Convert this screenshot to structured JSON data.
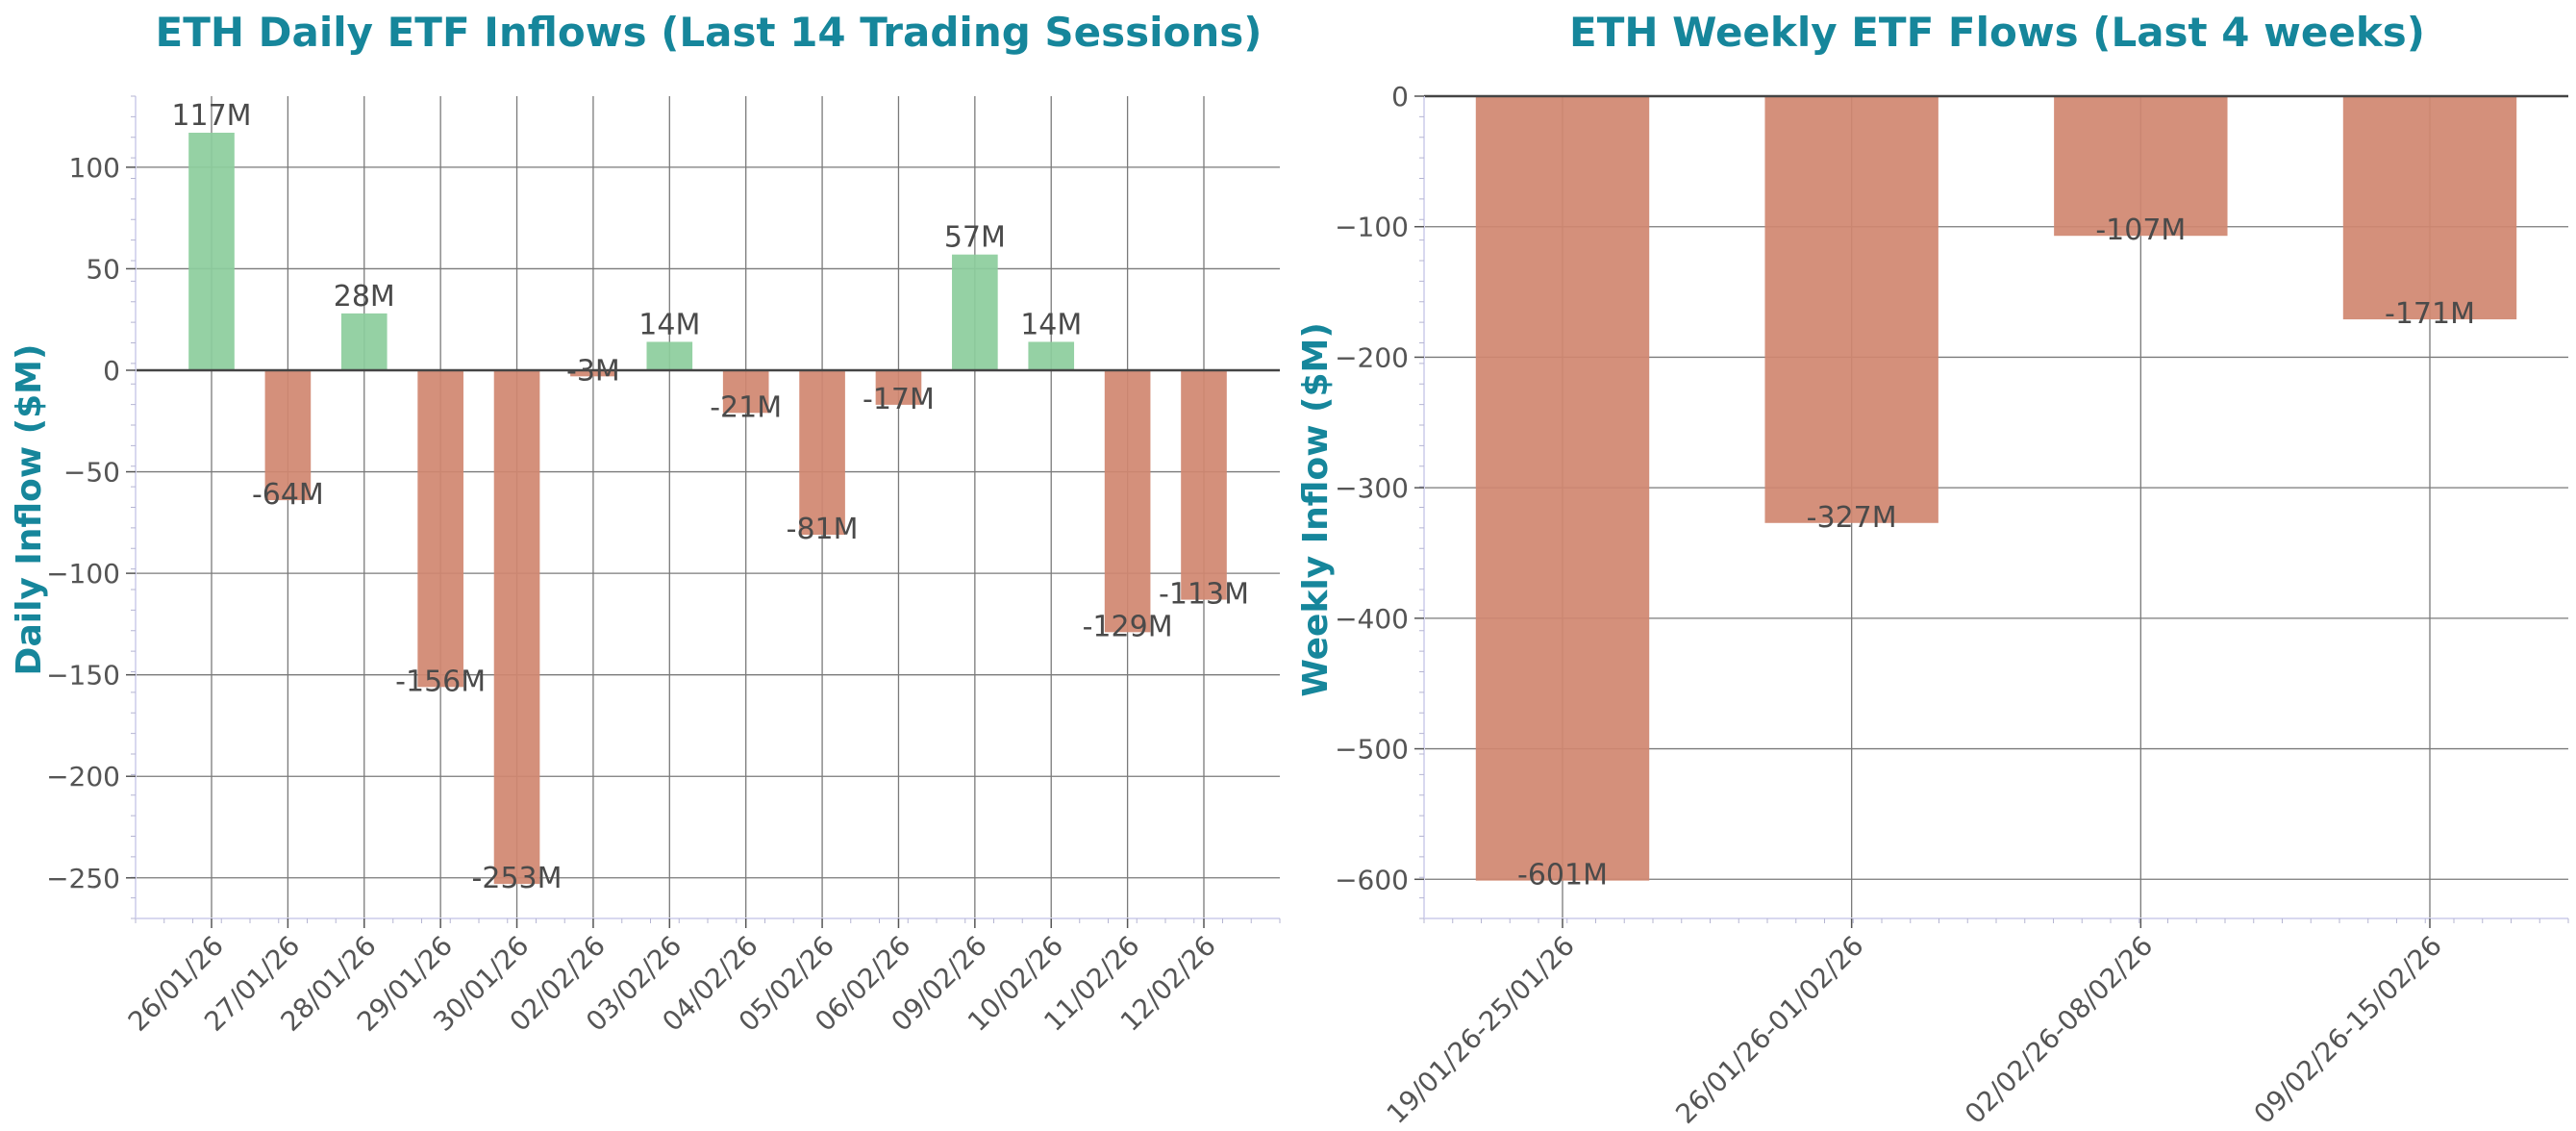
{
  "colors": {
    "positive": "#8ccd9c",
    "negative": "#d08770",
    "title": "#16869b",
    "text": "#4a4a4a"
  },
  "chart_data": [
    {
      "type": "bar",
      "title": "ETH Daily ETF Inflows (Last 14 Trading Sessions)",
      "xlabel": "",
      "ylabel": "Daily Inflow ($M)",
      "categories": [
        "26/01/26",
        "27/01/26",
        "28/01/26",
        "29/01/26",
        "30/01/26",
        "02/02/26",
        "03/02/26",
        "04/02/26",
        "05/02/26",
        "06/02/26",
        "09/02/26",
        "10/02/26",
        "11/02/26",
        "12/02/26"
      ],
      "values": [
        117,
        -64,
        28,
        -156,
        -253,
        -3,
        14,
        -21,
        -81,
        -17,
        57,
        14,
        -129,
        -113
      ],
      "labels": [
        "117M",
        "-64M",
        "28M",
        "-156M",
        "-253M",
        "-3M",
        "14M",
        "-21M",
        "-81M",
        "-17M",
        "57M",
        "14M",
        "-129M",
        "-113M"
      ],
      "ylim": [
        -270,
        135
      ],
      "yticks": [
        100,
        50,
        0,
        -50,
        -100,
        -150,
        -200,
        -250
      ],
      "ytick_labels": [
        "100",
        "50",
        "0",
        "−50",
        "−100",
        "−150",
        "−200",
        "−250"
      ],
      "grid": true
    },
    {
      "type": "bar",
      "title": "ETH Weekly ETF Flows (Last 4 weeks)",
      "xlabel": "",
      "ylabel": "Weekly Inflow ($M)",
      "categories": [
        "19/01/26-25/01/26",
        "26/01/26-01/02/26",
        "02/02/26-08/02/26",
        "09/02/26-15/02/26"
      ],
      "values": [
        -601,
        -327,
        -107,
        -171
      ],
      "labels": [
        "-601M",
        "-327M",
        "-107M",
        "-171M"
      ],
      "ylim": [
        -630,
        0
      ],
      "yticks": [
        0,
        -100,
        -200,
        -300,
        -400,
        -500,
        -600
      ],
      "ytick_labels": [
        "0",
        "−100",
        "−200",
        "−300",
        "−400",
        "−500",
        "−600"
      ],
      "grid": true
    }
  ]
}
